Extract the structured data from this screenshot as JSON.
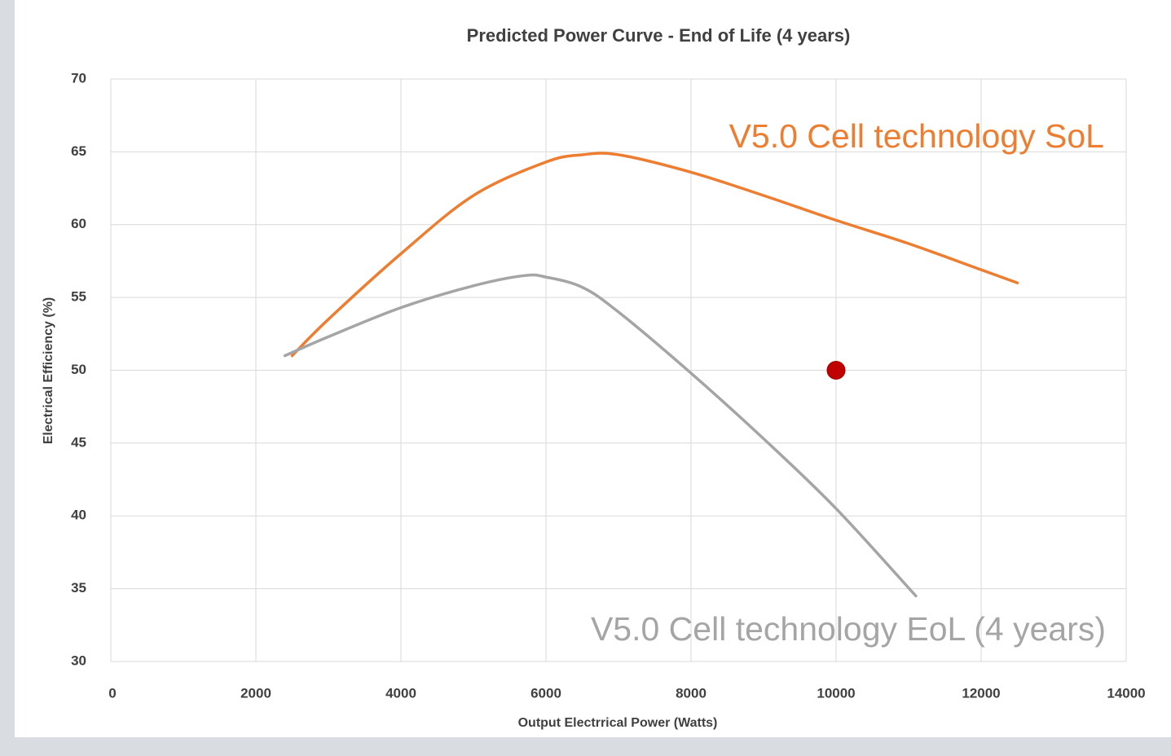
{
  "chart_data": {
    "type": "line",
    "title": "Predicted Power Curve - End of Life (4 years)",
    "xlabel": "Output Electrrical Power (Watts)",
    "ylabel": "Electrical Efficiency (%)",
    "xlim": [
      0,
      14000
    ],
    "xticks": [
      0,
      2000,
      4000,
      6000,
      8000,
      10000,
      12000,
      14000
    ],
    "ylim": [
      30,
      70
    ],
    "yticks": [
      30,
      35,
      40,
      45,
      50,
      55,
      60,
      65,
      70
    ],
    "grid": true,
    "series": [
      {
        "name": "V5.0 Cell technology SoL",
        "color": "#ed7d31",
        "x": [
          2500,
          3000,
          4000,
          5000,
          6000,
          6500,
          7000,
          8000,
          9000,
          10000,
          11000,
          12000,
          12500
        ],
        "values": [
          51,
          53.5,
          58,
          62,
          64.3,
          64.8,
          64.8,
          63.6,
          62,
          60.3,
          58.7,
          56.9,
          56
        ]
      },
      {
        "name": "V5.0 Cell technology EoL (4 years)",
        "color": "#a5a5a5",
        "x": [
          2400,
          3000,
          4000,
          5000,
          5700,
          6000,
          6500,
          7000,
          8000,
          9000,
          10000,
          11100
        ],
        "values": [
          51,
          52.3,
          54.3,
          55.8,
          56.5,
          56.4,
          55.7,
          54,
          49.8,
          45.3,
          40.5,
          34.5
        ]
      }
    ],
    "marker": {
      "x": 10000,
      "y": 50,
      "color": "#c00000"
    }
  }
}
